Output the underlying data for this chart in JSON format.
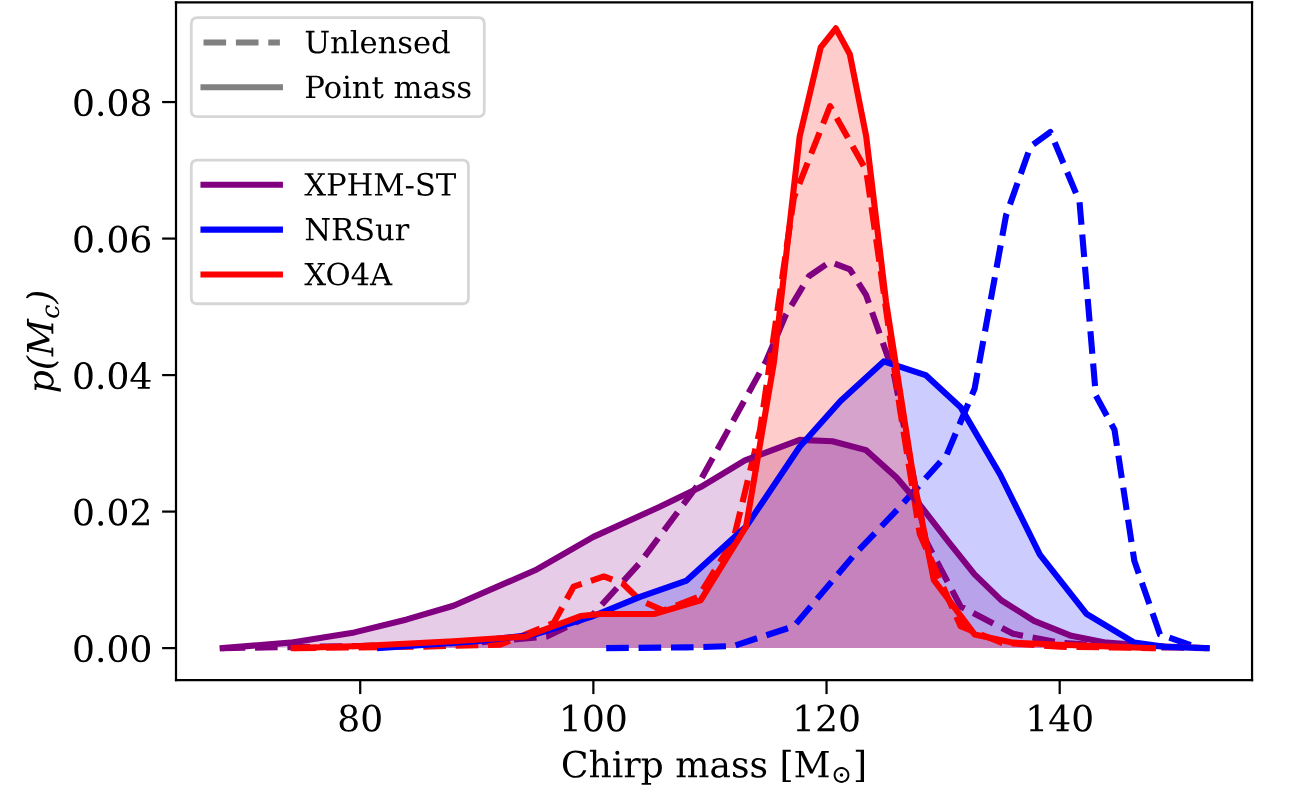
{
  "chart_data": {
    "type": "area",
    "xlabel": "Chirp mass [M$_{⊙}$]",
    "ylabel": "p(M$_{c}$)",
    "xlim": [
      64.2,
      156.5
    ],
    "ylim": [
      -0.0047,
      0.0946
    ],
    "xticks": [
      80,
      100,
      120,
      140
    ],
    "yticks": [
      {
        "value": 0,
        "label": "0.00"
      },
      {
        "value": 0.02,
        "label": "0.02"
      },
      {
        "value": 0.04,
        "label": "0.04"
      },
      {
        "value": 0.06,
        "label": "0.06"
      },
      {
        "value": 0.08,
        "label": "0.08"
      }
    ],
    "legend": "top left",
    "grid": false,
    "annotations": [
      "Unlensed",
      "Point mass"
    ],
    "series": [
      {
        "type": "line",
        "line_style": "dashed",
        "color": "#800080",
        "x": [
          68.2,
          80,
          90,
          96,
          100,
          104,
          109,
          114.8,
          116.5,
          118.5,
          120.3,
          122,
          123.4,
          125.8,
          128.5,
          131.5,
          136,
          140,
          145,
          152.6
        ],
        "values": [
          0,
          0.0003,
          0.0008,
          0.0017,
          0.005,
          0.0125,
          0.024,
          0.042,
          0.0488,
          0.0545,
          0.0566,
          0.0555,
          0.0517,
          0.04,
          0.0158,
          0.0061,
          0.0021,
          0.0008,
          0.0002,
          0
        ]
      },
      {
        "type": "line",
        "line_style": "dashed",
        "color": "#ff0000",
        "x": [
          74.3,
          85,
          92,
          96.6,
          98.3,
          100.9,
          102.5,
          104,
          106,
          109,
          112,
          114.3,
          117.2,
          120.3,
          123.4,
          124.6,
          126.3,
          128,
          131.5,
          135,
          140,
          148
        ],
        "values": [
          0,
          0.0002,
          0.0005,
          0.0037,
          0.009,
          0.0105,
          0.0095,
          0.007,
          0.0055,
          0.0075,
          0.0158,
          0.032,
          0.066,
          0.0794,
          0.07,
          0.0558,
          0.035,
          0.0167,
          0.0032,
          0.0008,
          0.0002,
          0
        ]
      },
      {
        "type": "line",
        "line_style": "dashed",
        "color": "#0000ff",
        "x": [
          101.1,
          108,
          112,
          117.2,
          122.4,
          126.3,
          130.3,
          132.7,
          135.4,
          137.5,
          139.2,
          141.7,
          143.1,
          144.7,
          146.4,
          148.6,
          152
        ],
        "values": [
          0,
          0.0001,
          0.0003,
          0.0032,
          0.0137,
          0.0207,
          0.0283,
          0.038,
          0.0634,
          0.0735,
          0.0756,
          0.0654,
          0.037,
          0.032,
          0.0128,
          0.002,
          0
        ]
      },
      {
        "name": "XPHM-ST",
        "line_style": "solid",
        "color": "#800080",
        "x": [
          68.2,
          74,
          79.5,
          84,
          88,
          95,
          100,
          105.7,
          109.2,
          113,
          117.7,
          120.5,
          123.4,
          126,
          128,
          130.5,
          132.7,
          135,
          137.8,
          141,
          144,
          148,
          152.6
        ],
        "values": [
          0,
          0.0008,
          0.0023,
          0.0042,
          0.0062,
          0.0114,
          0.0163,
          0.0207,
          0.0236,
          0.0275,
          0.0305,
          0.0303,
          0.029,
          0.025,
          0.021,
          0.0155,
          0.0108,
          0.007,
          0.004,
          0.0018,
          0.0008,
          0.0003,
          0
        ]
      },
      {
        "name": "NRSur",
        "line_style": "solid",
        "color": "#0000ff",
        "x": [
          81.7,
          90,
          95,
          100,
          104,
          108,
          113.1,
          117.7,
          121.2,
          124.9,
          128.5,
          131.5,
          134.9,
          138.3,
          142.3,
          146.4,
          149,
          152.6
        ],
        "values": [
          0,
          0.001,
          0.002,
          0.0047,
          0.0075,
          0.0099,
          0.0178,
          0.0295,
          0.0362,
          0.042,
          0.04,
          0.0353,
          0.0254,
          0.0137,
          0.005,
          0.0008,
          0.0002,
          0
        ]
      },
      {
        "name": "XO4A",
        "line_style": "solid",
        "color": "#ff0000",
        "x": [
          74.3,
          80,
          88,
          94.2,
          98.9,
          100.6,
          105.2,
          109.2,
          113.1,
          115.5,
          117.7,
          119.5,
          120.8,
          122,
          123.4,
          125.1,
          127.5,
          129.2,
          132.7,
          136,
          140,
          148
        ],
        "values": [
          0,
          0.0003,
          0.001,
          0.0017,
          0.0047,
          0.005,
          0.005,
          0.007,
          0.0178,
          0.042,
          0.075,
          0.088,
          0.0908,
          0.087,
          0.075,
          0.0508,
          0.0245,
          0.01,
          0.002,
          0.0008,
          0.0005,
          0
        ]
      }
    ]
  }
}
